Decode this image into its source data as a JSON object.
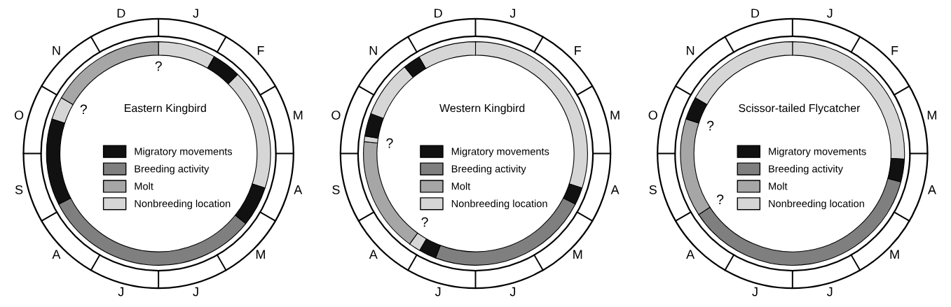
{
  "chart_data": [
    {
      "type": "donut",
      "title": "Eastern Kingbird",
      "categories": [
        "Nonbreeding location",
        "Migratory movements",
        null,
        null,
        "Breeding activity",
        null,
        null,
        "Molt"
      ],
      "values": [
        8.3,
        4.2,
        17.5,
        5.8,
        31.7,
        12.5,
        3.3,
        16.7
      ],
      "colors": [
        "#d6d6d6",
        "#111111",
        "#d6d6d6",
        "#111111",
        "#7f7f7f",
        "#111111",
        "#d6d6d6",
        "#a6a6a6"
      ],
      "legend": "center",
      "annotations": [
        "J",
        "F",
        "M",
        "A",
        "M",
        "J",
        "J",
        "A",
        "S",
        "O",
        "N",
        "D",
        {
          "text": "?",
          "x": "Molt"
        },
        {
          "text": "?",
          "x": "Molt"
        }
      ]
    },
    {
      "type": "donut",
      "title": "Western Kingbird",
      "categories": [
        "Nonbreeding location",
        "Migratory movements",
        "Breeding activity",
        null,
        null,
        "Molt",
        null,
        null,
        null,
        null,
        null
      ],
      "values": [
        30,
        2.5,
        23.3,
        2.5,
        1.7,
        16.7,
        0.8,
        3.3,
        8.3,
        2.5,
        8.4
      ],
      "colors": [
        "#d6d6d6",
        "#111111",
        "#7f7f7f",
        "#111111",
        "#d6d6d6",
        "#a6a6a6",
        "#d6d6d6",
        "#111111",
        "#d6d6d6",
        "#111111",
        "#d6d6d6"
      ],
      "legend": "center",
      "annotations": [
        "J",
        "F",
        "M",
        "A",
        "M",
        "J",
        "J",
        "A",
        "S",
        "O",
        "N",
        "D",
        {
          "text": "?",
          "x": "Molt"
        },
        {
          "text": "?",
          "x": "Molt"
        }
      ]
    },
    {
      "type": "donut",
      "title": "Scissor-tailed Flycatcher",
      "categories": [
        "Nonbreeding location",
        "Migratory movements",
        "Breeding activity",
        "Molt",
        null,
        null
      ],
      "values": [
        25.8,
        3.3,
        36.7,
        14.2,
        3.3,
        16.7
      ],
      "colors": [
        "#d6d6d6",
        "#111111",
        "#7f7f7f",
        "#a6a6a6",
        "#111111",
        "#d6d6d6"
      ],
      "legend": "center",
      "annotations": [
        "J",
        "F",
        "M",
        "A",
        "M",
        "J",
        "J",
        "A",
        "S",
        "O",
        "N",
        "D",
        {
          "text": "?",
          "x": "Molt"
        },
        {
          "text": "?",
          "x": "Molt"
        }
      ]
    }
  ]
}
